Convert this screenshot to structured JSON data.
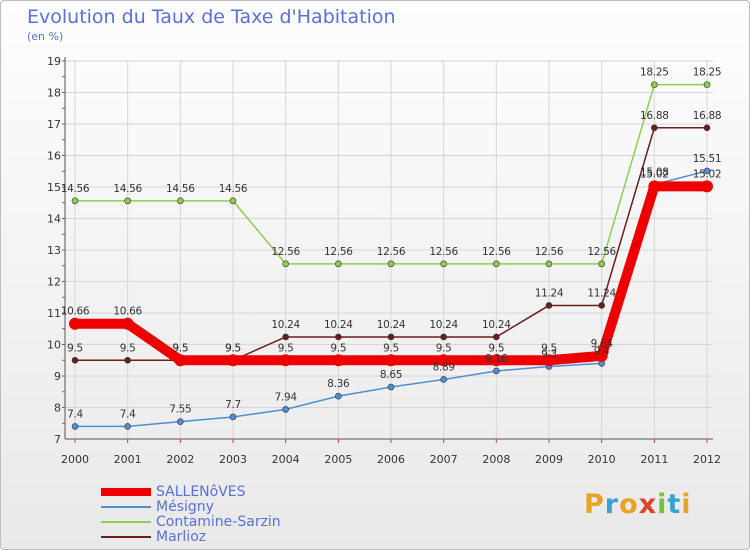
{
  "header": {
    "title": "Evolution du Taux de Taxe d'Habitation",
    "subtitle": "(en %)"
  },
  "logo": {
    "text": "Proxiti",
    "letters": [
      {
        "ch": "P",
        "color": "#e8a324"
      },
      {
        "ch": "r",
        "color": "#3aa0d6"
      },
      {
        "ch": "o",
        "color": "#e8a324"
      },
      {
        "ch": "x",
        "color": "#d8452c"
      },
      {
        "ch": "i",
        "color": "#7cbe3a"
      },
      {
        "ch": "t",
        "color": "#3aa0d6"
      },
      {
        "ch": "i",
        "color": "#e8a324"
      }
    ]
  },
  "chart_data": {
    "type": "line",
    "title": "Evolution du Taux de Taxe d'Habitation",
    "ylabel": "(en %)",
    "xlabel": "",
    "x": [
      "2000",
      "2001",
      "2002",
      "2003",
      "2004",
      "2005",
      "2006",
      "2007",
      "2008",
      "2009",
      "2010",
      "2011",
      "2012"
    ],
    "ylim": [
      7,
      19
    ],
    "yticks": [
      7,
      8,
      9,
      10,
      11,
      12,
      13,
      14,
      15,
      16,
      17,
      18,
      19
    ],
    "grid": true,
    "legend": "bottom-left",
    "series": [
      {
        "name": "Contamine-Sarzin",
        "color": "#8ccf4f",
        "values": [
          14.56,
          14.56,
          14.56,
          14.56,
          12.56,
          12.56,
          12.56,
          12.56,
          12.56,
          12.56,
          12.56,
          18.25,
          18.25
        ],
        "labels": [
          "14.56",
          "14.56",
          "14.56",
          "14.56",
          "12.56",
          "12.56",
          "12.56",
          "12.56",
          "12.56",
          "12.56",
          "12.56",
          "18.25",
          "18.25"
        ]
      },
      {
        "name": "Marlioz",
        "color": "#6b1d1d",
        "values": [
          9.5,
          9.5,
          9.5,
          9.5,
          10.24,
          10.24,
          10.24,
          10.24,
          10.24,
          11.24,
          11.24,
          16.88,
          16.88
        ],
        "labels": [
          "9.5",
          "9.5",
          "9.5",
          "9.5",
          "10.24",
          "10.24",
          "10.24",
          "10.24",
          "10.24",
          "11.24",
          "11.24",
          "16.88",
          "16.88"
        ]
      },
      {
        "name": "Mésigny",
        "color": "#4d8fd1",
        "values": [
          7.4,
          7.4,
          7.55,
          7.7,
          7.94,
          8.36,
          8.65,
          8.89,
          9.16,
          9.3,
          9.4,
          15.08,
          15.51
        ],
        "labels": [
          "7.4",
          "7.4",
          "7.55",
          "7.7",
          "7.94",
          "8.36",
          "8.65",
          "8.89",
          "9.16",
          "9.3",
          "9.4",
          "15.08",
          "15.51"
        ]
      },
      {
        "name": "SALLENôVES",
        "color": "#ee0000",
        "values": [
          10.66,
          10.66,
          9.5,
          9.5,
          9.5,
          9.5,
          9.5,
          9.5,
          9.5,
          9.5,
          9.64,
          15.02,
          15.02
        ],
        "labels": [
          "10.66",
          "10.66",
          "9.5",
          "9.5",
          "9.5",
          "9.5",
          "9.5",
          "9.5",
          "9.5",
          "9.5",
          "9.64",
          "15.02",
          "15.02"
        ]
      }
    ]
  },
  "legend": {
    "items": [
      {
        "label": "SALLENôVES",
        "color": "#ee0000",
        "thick": true
      },
      {
        "label": "Mésigny",
        "color": "#4d8fd1",
        "thick": false
      },
      {
        "label": "Contamine-Sarzin",
        "color": "#8ccf4f",
        "thick": false
      },
      {
        "label": "Marlioz",
        "color": "#6b1d1d",
        "thick": false
      }
    ]
  }
}
